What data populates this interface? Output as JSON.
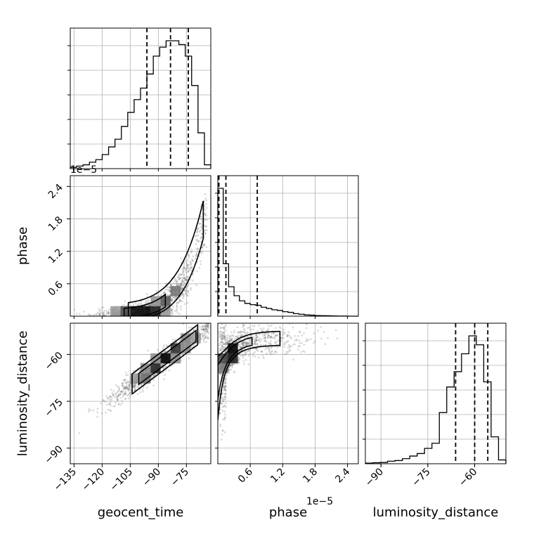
{
  "chart_data": {
    "type": "corner",
    "params": [
      {
        "name": "geocent_time",
        "label": "geocent_time",
        "range": [
          -137,
          -62
        ],
        "ticks": [
          -135,
          -120,
          -105,
          -90,
          -75
        ],
        "tick_labels": [
          "−135",
          "−120",
          "−105",
          "−90",
          "−75"
        ],
        "quantiles": [
          -96.1,
          -83.5,
          -74.0
        ],
        "hist": [
          0.01,
          0.02,
          0.03,
          0.05,
          0.07,
          0.11,
          0.17,
          0.23,
          0.33,
          0.44,
          0.54,
          0.63,
          0.74,
          0.88,
          0.95,
          1.0,
          1.0,
          0.97,
          0.88,
          0.65,
          0.28,
          0.03
        ]
      },
      {
        "name": "phase",
        "label": "phase",
        "range": [
          0.0,
          2.6
        ],
        "ticks": [
          0.6,
          1.2,
          1.8,
          2.4
        ],
        "tick_labels": [
          "0.6",
          "1.2",
          "1.8",
          "2.4"
        ],
        "offset_label": "1e−5",
        "quantiles": [
          0.02,
          0.15,
          0.73
        ],
        "hist": [
          1.0,
          0.41,
          0.23,
          0.16,
          0.12,
          0.1,
          0.09,
          0.085,
          0.07,
          0.06,
          0.05,
          0.045,
          0.035,
          0.03,
          0.02,
          0.015,
          0.01,
          0.008,
          0.005,
          0.004,
          0.003,
          0.002,
          0.001,
          0.001,
          0.0,
          0.0
        ]
      },
      {
        "name": "luminosity_distance",
        "label": "luminosity_distance",
        "range": [
          -95.0,
          -50.0
        ],
        "ticks": [
          -90,
          -75,
          -60
        ],
        "tick_labels": [
          "−90",
          "−75",
          "−60"
        ],
        "quantiles": [
          -66.1,
          -60.0,
          -55.8
        ],
        "hist": [
          0.005,
          0.008,
          0.01,
          0.02,
          0.025,
          0.04,
          0.06,
          0.08,
          0.12,
          0.16,
          0.4,
          0.6,
          0.72,
          0.86,
          1.0,
          0.93,
          0.64,
          0.21,
          0.03
        ]
      }
    ],
    "diag_yticks": 5,
    "pairs": [
      {
        "x": "geocent_time",
        "y": "phase",
        "curve": "exponential",
        "scatter_points": 1300
      },
      {
        "x": "geocent_time",
        "y": "luminosity_distance",
        "curve": "linear",
        "scatter_points": 1300
      },
      {
        "x": "phase",
        "y": "luminosity_distance",
        "curve": "saturating",
        "scatter_points": 1300
      }
    ],
    "grid": true,
    "colors": {
      "line": "#000000",
      "scatter": "#6e6e6e",
      "grid": "#b0b0b0",
      "background": "#ffffff"
    }
  }
}
